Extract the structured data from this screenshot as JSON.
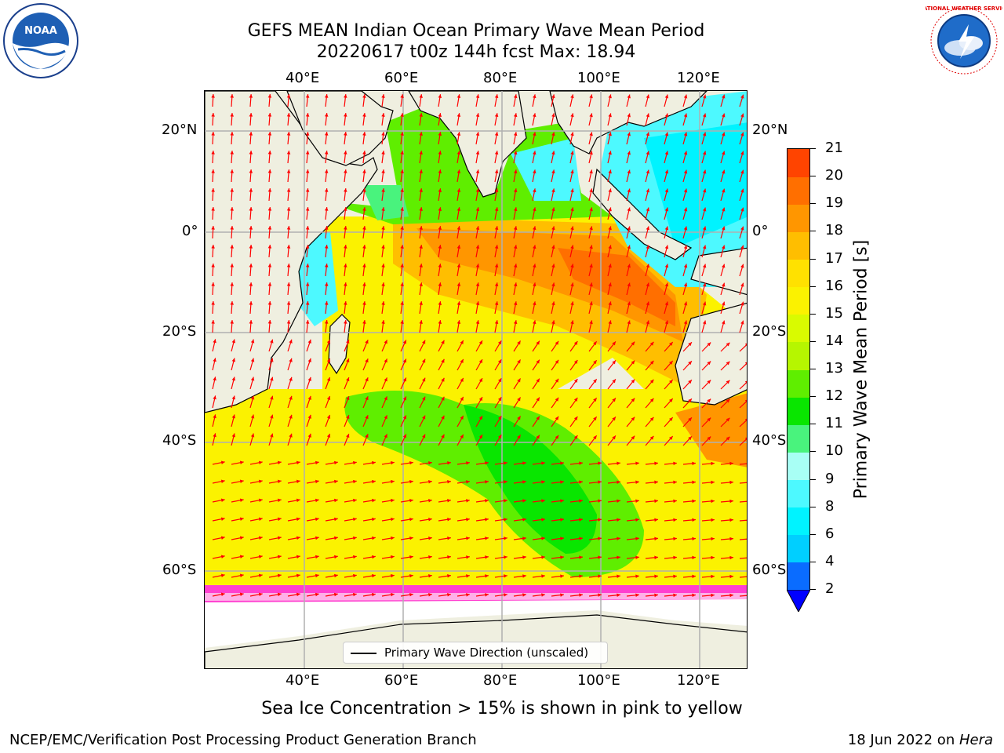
{
  "title": {
    "line1": "GEFS MEAN Indian Ocean Primary Wave Mean Period",
    "line2": "20220617 t00z 144h fcst   Max: 18.94"
  },
  "map": {
    "lon_labels": [
      "40°E",
      "60°E",
      "80°E",
      "100°E",
      "120°E"
    ],
    "lat_labels": [
      "20°N",
      "0°",
      "20°S",
      "40°S",
      "60°S"
    ],
    "legend_label": "Primary Wave Direction (unscaled)",
    "grid": true,
    "land_color": "#efefe0",
    "vector_color": "#ff0000"
  },
  "colorbar": {
    "label": "Primary Wave Mean Period [s]",
    "ticks": [
      "2",
      "4",
      "6",
      "8",
      "9",
      "10",
      "11",
      "12",
      "13",
      "14",
      "15",
      "16",
      "17",
      "18",
      "19",
      "20",
      "21"
    ],
    "colors": [
      "#0a6cff",
      "#00cfff",
      "#00f3ff",
      "#4df9ff",
      "#a8fff5",
      "#49f37d",
      "#09e600",
      "#5fee00",
      "#b6f600",
      "#d9fb00",
      "#fbf200",
      "#ffe100",
      "#ffbe00",
      "#ff9600",
      "#ff6f00",
      "#ff4400",
      "#ff1a00"
    ]
  },
  "footnote": "Sea Ice Concentration > 15% is shown in pink to yellow",
  "footer": {
    "left": "NCEP/EMC/Verification Post Processing Product Generation Branch",
    "date": "18 Jun 2022 on ",
    "machine": "Hera"
  },
  "logos": {
    "noaa_text": "NOAA",
    "nws_text": "NATIONAL WEATHER SERVICE"
  }
}
